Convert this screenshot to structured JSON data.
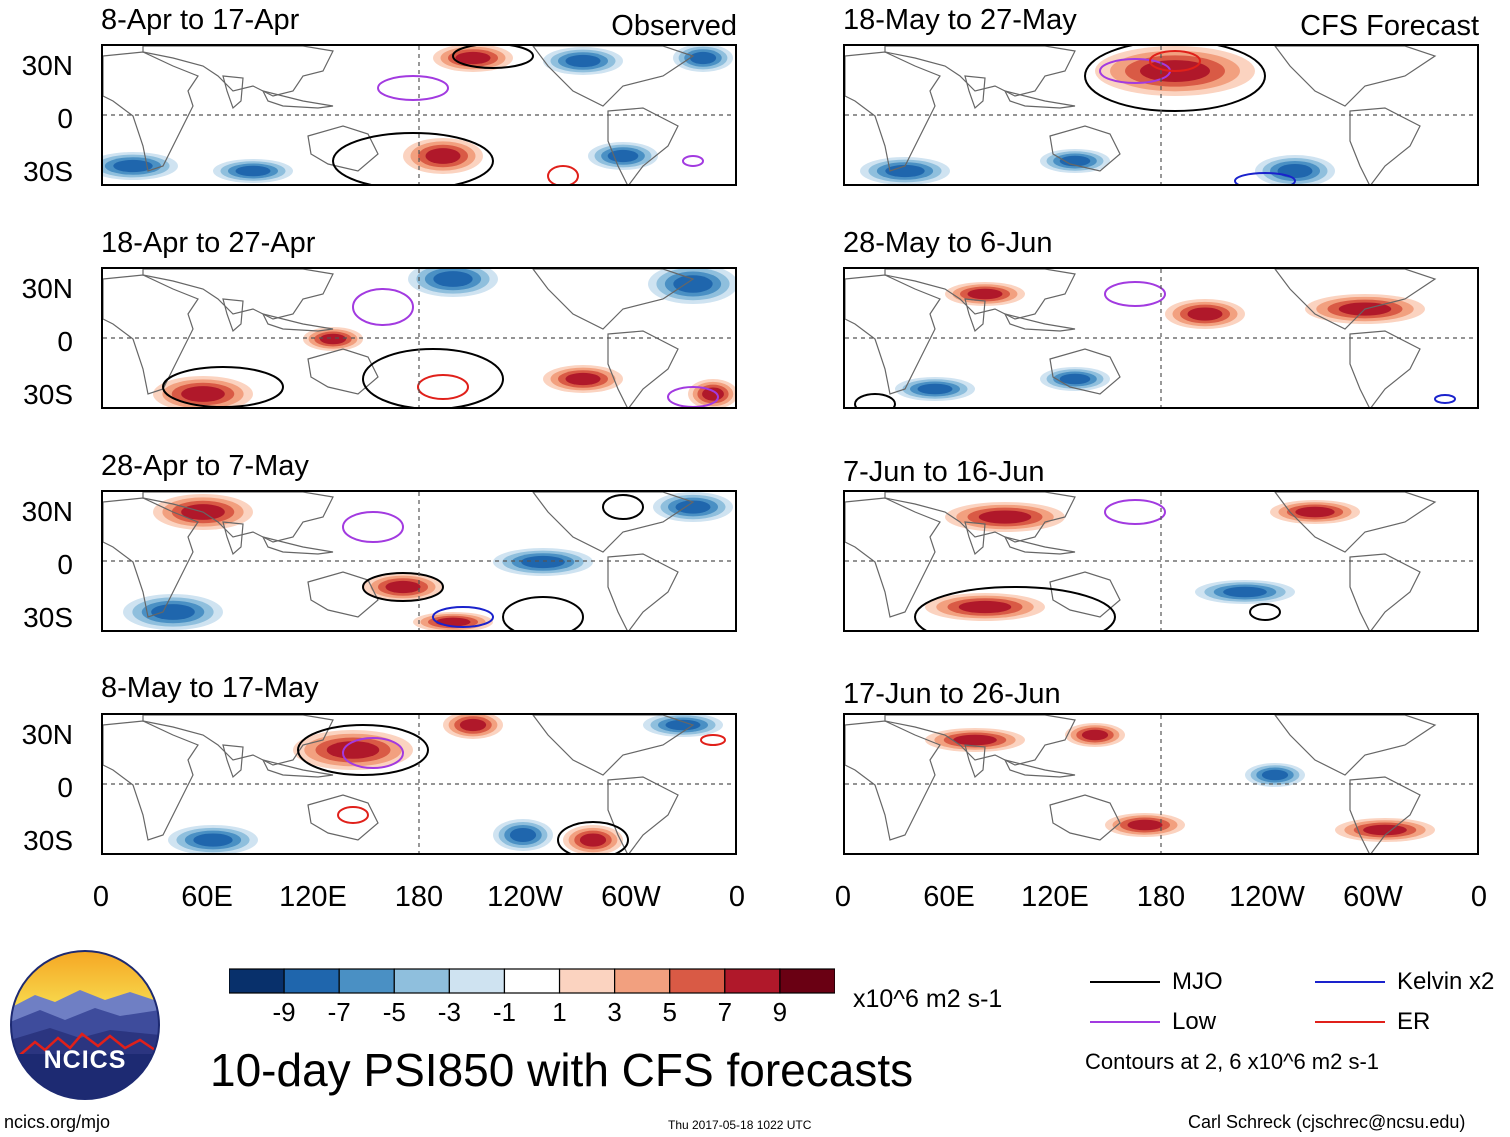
{
  "header": {
    "observed_label": "Observed",
    "forecast_label": "CFS Forecast"
  },
  "panels_observed": [
    {
      "title": "8-Apr to 17-Apr"
    },
    {
      "title": "18-Apr to 27-Apr"
    },
    {
      "title": "28-Apr to 7-May"
    },
    {
      "title": "8-May to 17-May"
    }
  ],
  "panels_forecast": [
    {
      "title": "18-May to 27-May"
    },
    {
      "title": "28-May to 6-Jun"
    },
    {
      "title": "7-Jun to 16-Jun"
    },
    {
      "title": "17-Jun to 26-Jun"
    }
  ],
  "axes": {
    "lat_labels": [
      "30N",
      "0",
      "30S"
    ],
    "lon_labels": [
      "0",
      "60E",
      "120E",
      "180",
      "120W",
      "60W",
      "0"
    ]
  },
  "colorbar": {
    "tick_labels": [
      "-9",
      "-7",
      "-5",
      "-3",
      "-1",
      "1",
      "3",
      "5",
      "7",
      "9"
    ],
    "units": "x10^6 m2 s-1",
    "colors": [
      "#08306b",
      "#1f66ad",
      "#4a90c4",
      "#8fbfdd",
      "#cfe3f1",
      "#ffffff",
      "#fbd3c0",
      "#f2a07f",
      "#d95a45",
      "#b0182a",
      "#6a0013"
    ]
  },
  "legend": {
    "items": [
      {
        "label": "MJO",
        "color": "#000000"
      },
      {
        "label": "Kelvin x2",
        "color": "#1a22cc"
      },
      {
        "label": "Low",
        "color": "#a23ae0"
      },
      {
        "label": "ER",
        "color": "#e0201a"
      }
    ],
    "contour_note": "Contours at 2, 6 x10^6 m2 s-1"
  },
  "main_title": "10-day PSI850 with CFS forecasts",
  "footer": {
    "logo_text": "NCICS",
    "url": "ncics.org/mjo",
    "timestamp": "Thu 2017-05-18 1022 UTC",
    "credit": "Carl Schreck (cjschrec@ncsu.edu)"
  }
}
